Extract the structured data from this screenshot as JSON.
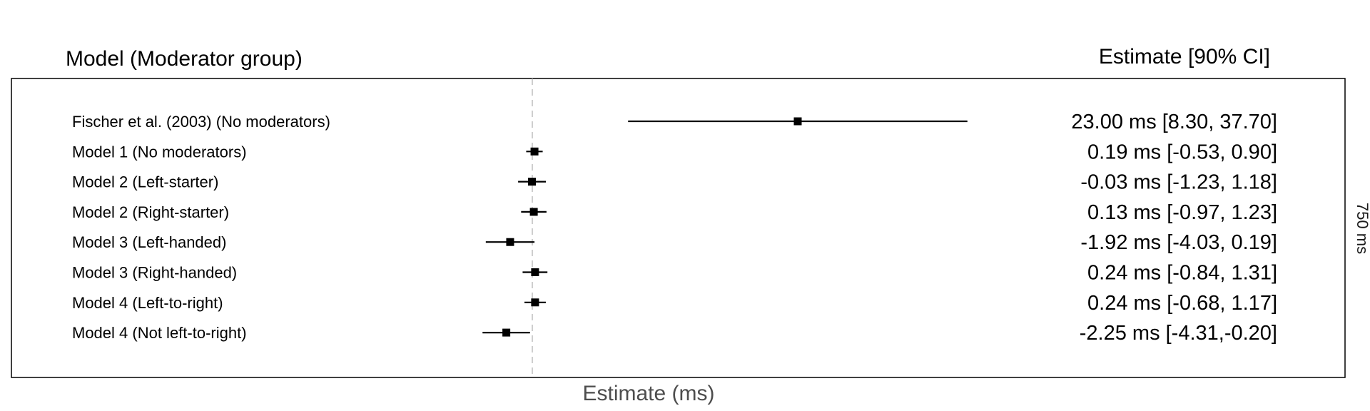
{
  "headers": {
    "left": "Model (Moderator group)",
    "right": "Estimate [90% CI]"
  },
  "chart_data": {
    "type": "forest",
    "xlabel": "Estimate (ms)",
    "facet_label": "750 ms",
    "reference_line": 0,
    "rows": [
      {
        "label": "Fischer et al. (2003) (No moderators)",
        "estimate": 23.0,
        "lower": 8.3,
        "upper": 37.7,
        "text": "23.00 ms [8.30, 37.70]"
      },
      {
        "label": "Model 1 (No moderators)",
        "estimate": 0.19,
        "lower": -0.53,
        "upper": 0.9,
        "text": "0.19 ms [-0.53, 0.90]"
      },
      {
        "label": "Model 2 (Left-starter)",
        "estimate": -0.03,
        "lower": -1.23,
        "upper": 1.18,
        "text": "-0.03 ms [-1.23, 1.18]"
      },
      {
        "label": "Model 2 (Right-starter)",
        "estimate": 0.13,
        "lower": -0.97,
        "upper": 1.23,
        "text": "0.13 ms [-0.97, 1.23]"
      },
      {
        "label": "Model 3 (Left-handed)",
        "estimate": -1.92,
        "lower": -4.03,
        "upper": 0.19,
        "text": "-1.92 ms [-4.03, 0.19]"
      },
      {
        "label": "Model 3 (Right-handed)",
        "estimate": 0.24,
        "lower": -0.84,
        "upper": 1.31,
        "text": "0.24 ms [-0.84, 1.31]"
      },
      {
        "label": "Model 4 (Left-to-right)",
        "estimate": 0.24,
        "lower": -0.68,
        "upper": 1.17,
        "text": "0.24 ms [-0.68, 1.17]"
      },
      {
        "label": "Model 4 (Not left-to-right)",
        "estimate": -2.25,
        "lower": -4.31,
        "upper": -0.2,
        "text": "-2.25 ms [-4.31,-0.20]"
      }
    ]
  }
}
